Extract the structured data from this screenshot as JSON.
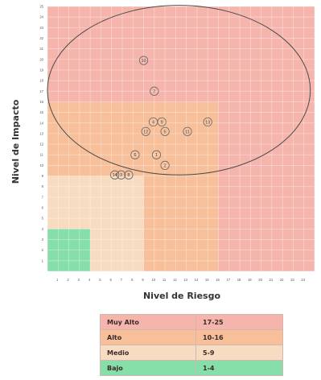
{
  "chart_data": {
    "type": "scatter",
    "title": "",
    "xlabel": "Nivel de Riesgo",
    "ylabel": "Nivel de Impacto",
    "x_ticks": [
      1,
      2,
      3,
      4,
      5,
      6,
      7,
      8,
      9,
      10,
      11,
      12,
      13,
      14,
      15,
      16,
      17,
      18,
      19,
      20,
      21,
      22,
      23,
      24
    ],
    "y_ticks": [
      1,
      2,
      3,
      4,
      5,
      6,
      7,
      8,
      9,
      10,
      11,
      12,
      13,
      14,
      15,
      16,
      17,
      18,
      19,
      20,
      21,
      22,
      23,
      24,
      25
    ],
    "xlim": [
      0,
      25
    ],
    "ylim": [
      0,
      25
    ],
    "grid": true,
    "zones": [
      {
        "label": "Muy Alto",
        "x_max": 25,
        "y_max": 25,
        "color": "#f5b5ad"
      },
      {
        "label": "Alto",
        "x_max": 16,
        "y_max": 16,
        "color": "#f7c09a"
      },
      {
        "label": "Medio",
        "x_max": 9,
        "y_max": 9,
        "color": "#f8dcc1"
      },
      {
        "label": "Bajo",
        "x_max": 4,
        "y_max": 4,
        "color": "#86dea9"
      }
    ],
    "ellipse": {
      "cx": 12.3,
      "cy": 17.1,
      "rx": 12.3,
      "ry": 8.0
    },
    "points": [
      {
        "label": "10",
        "x": 9.0,
        "y": 19.9
      },
      {
        "label": "7",
        "x": 10.0,
        "y": 17.0
      },
      {
        "label": "4",
        "x": 9.9,
        "y": 14.1
      },
      {
        "label": "9",
        "x": 10.7,
        "y": 14.1
      },
      {
        "label": "13",
        "x": 15.0,
        "y": 14.1
      },
      {
        "label": "12",
        "x": 9.2,
        "y": 13.2
      },
      {
        "label": "5",
        "x": 11.0,
        "y": 13.2
      },
      {
        "label": "11",
        "x": 13.1,
        "y": 13.2
      },
      {
        "label": "6",
        "x": 8.2,
        "y": 11.0
      },
      {
        "label": "1",
        "x": 10.2,
        "y": 11.0
      },
      {
        "label": "2",
        "x": 11.0,
        "y": 10.0
      },
      {
        "label": "14",
        "x": 6.3,
        "y": 9.1
      },
      {
        "label": "3",
        "x": 6.9,
        "y": 9.1
      },
      {
        "label": "8",
        "x": 7.6,
        "y": 9.1
      }
    ]
  },
  "legend": {
    "rows": [
      {
        "label": "Muy Alto",
        "range": "17-25",
        "color": "#f5b5ad"
      },
      {
        "label": "Alto",
        "range": "10-16",
        "color": "#f7c09a"
      },
      {
        "label": "Medio",
        "range": "5-9",
        "color": "#f8dcc1"
      },
      {
        "label": "Bajo",
        "range": "1-4",
        "color": "#86dea9"
      }
    ]
  }
}
